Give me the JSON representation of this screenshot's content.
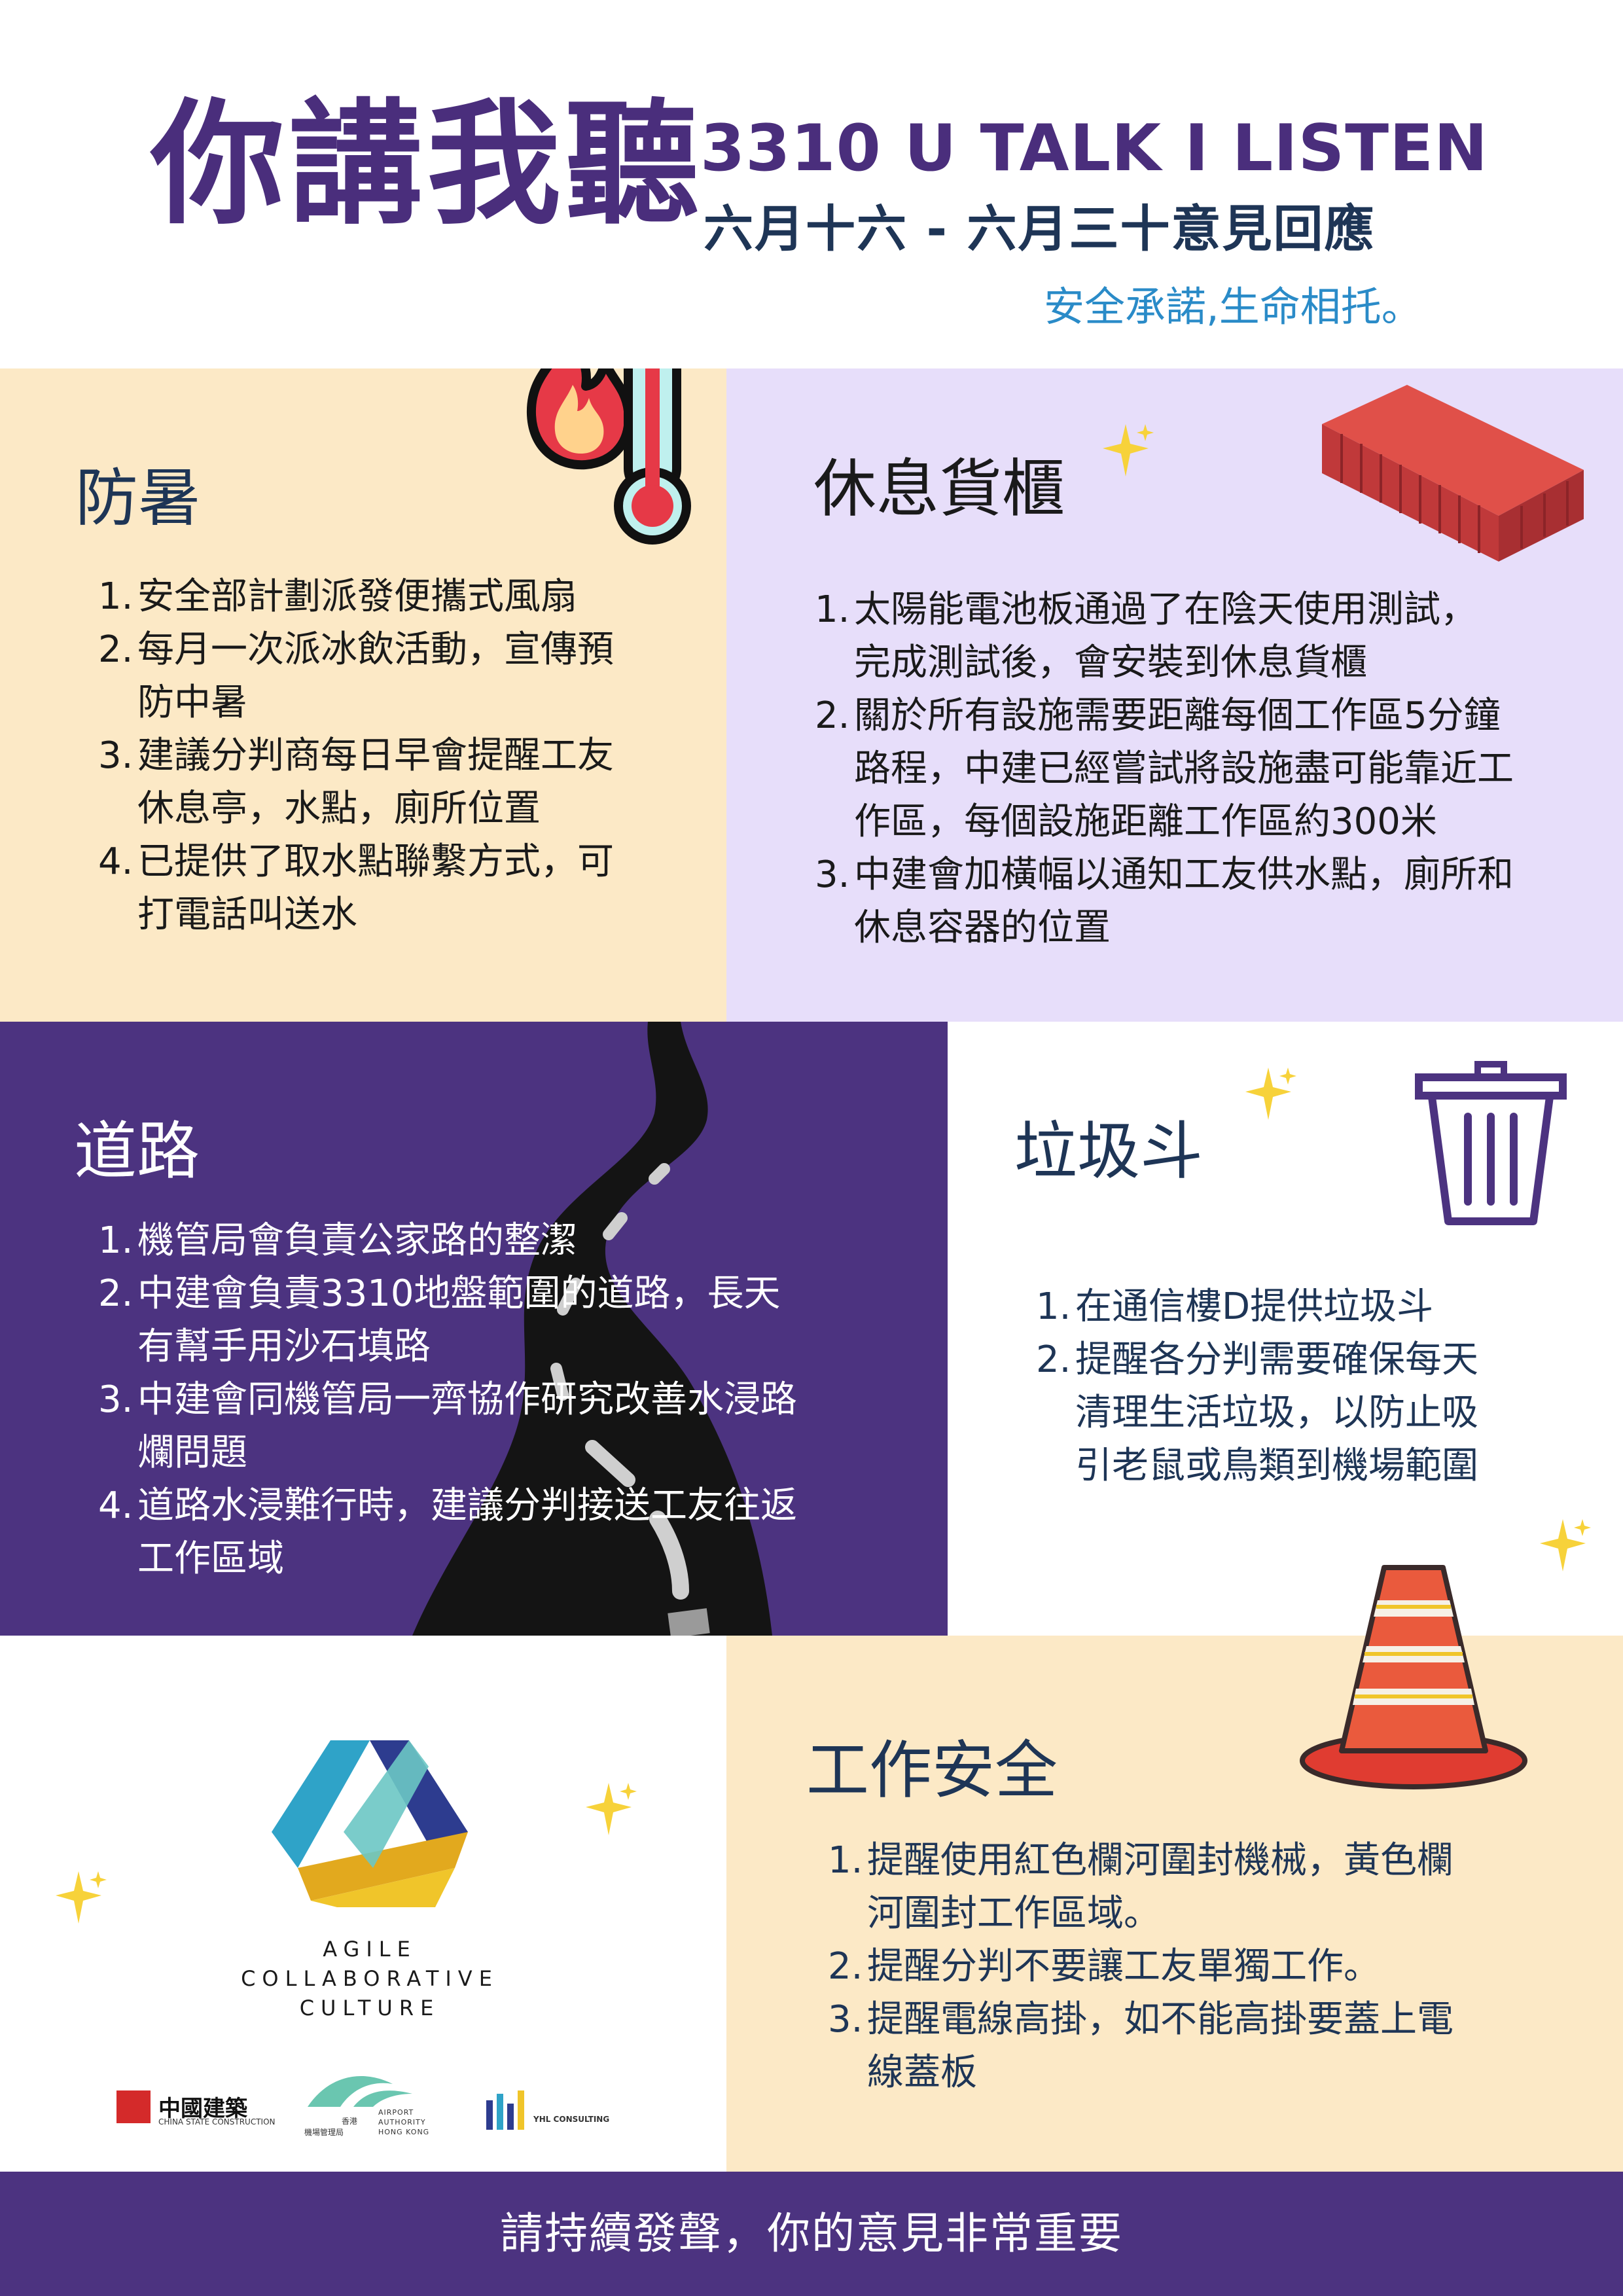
{
  "header": {
    "title_zh": "你講我聽",
    "title_en": "3310 U TALK I LISTEN",
    "date_range": "六月十六 - 六月三十意見回應",
    "slogan": "安全承諾,生命相托。"
  },
  "sections": {
    "heat": {
      "heading": "防暑",
      "items": [
        {
          "num": "1.",
          "lines": [
            "安全部計劃派發便攜式風扇"
          ]
        },
        {
          "num": "2.",
          "lines": [
            "每月一次派冰飲活動，宣傳預",
            "防中暑"
          ]
        },
        {
          "num": "3.",
          "lines": [
            "建議分判商每日早會提醒工友",
            "休息亭，水點，廁所位置"
          ]
        },
        {
          "num": "4.",
          "lines": [
            "已提供了取水點聯繫方式，可",
            "打電話叫送水"
          ]
        }
      ]
    },
    "rest": {
      "heading": "休息貨櫃",
      "items": [
        {
          "num": "1.",
          "lines": [
            "太陽能電池板通過了在陰天使用測試，",
            "完成測試後，會安裝到休息貨櫃"
          ]
        },
        {
          "num": "2.",
          "lines": [
            "關於所有設施需要距離每個工作區5分鐘",
            "路程，中建已經嘗試將設施盡可能靠近工",
            "作區，每個設施距離工作區約300米"
          ]
        },
        {
          "num": "3.",
          "lines": [
            "中建會加橫幅以通知工友供水點，廁所和",
            "休息容器的位置"
          ]
        }
      ]
    },
    "road": {
      "heading": "道路",
      "items": [
        {
          "num": "1.",
          "lines": [
            "機管局會負責公家路的整潔"
          ]
        },
        {
          "num": "2.",
          "lines": [
            "中建會負責3310地盤範圍的道路，長天",
            "有幫手用沙石填路"
          ]
        },
        {
          "num": "3.",
          "lines": [
            "中建會同機管局一齊協作研究改善水浸路",
            "爛問題"
          ]
        },
        {
          "num": "4.",
          "lines": [
            "道路水浸難行時，建議分判接送工友往返",
            "工作區域"
          ]
        }
      ]
    },
    "bin": {
      "heading": "垃圾斗",
      "items": [
        {
          "num": "1.",
          "lines": [
            "在通信樓D提供垃圾斗"
          ]
        },
        {
          "num": "2.",
          "lines": [
            "提醒各分判需要確保每天",
            "清理生活垃圾，以防止吸",
            "引老鼠或鳥類到機場範圍"
          ]
        }
      ]
    },
    "safety": {
      "heading": "工作安全",
      "items": [
        {
          "num": "1.",
          "lines": [
            "提醒使用紅色欄河圍封機械，黃色欄",
            "河圍封工作區域。"
          ]
        },
        {
          "num": "2.",
          "lines": [
            "提醒分判不要讓工友單獨工作。"
          ]
        },
        {
          "num": "3.",
          "lines": [
            "提醒電線高掛，如不能高掛要蓋上電",
            "線蓋板"
          ]
        }
      ]
    }
  },
  "logo": {
    "line1": "AGILE",
    "line2": "COLLABORATIVE",
    "line3": "CULTURE"
  },
  "partners": {
    "csci_zh": "中國建築",
    "csci_en": "CHINA STATE CONSTRUCTION",
    "aa_zh_1": "香港",
    "aa_zh_2": "機場管理局",
    "aa_en_1": "AIRPORT",
    "aa_en_2": "AUTHORITY",
    "aa_en_3": "HONG KONG",
    "yhl": "YHL CONSULTING"
  },
  "footer": {
    "text": "請持續發聲，你的意見非常重要"
  },
  "colors": {
    "purple": "#4c3380",
    "navy": "#1e3556",
    "cream": "#fce9c6",
    "lavender": "#e7defa",
    "slogan_blue": "#2a8bc8"
  }
}
